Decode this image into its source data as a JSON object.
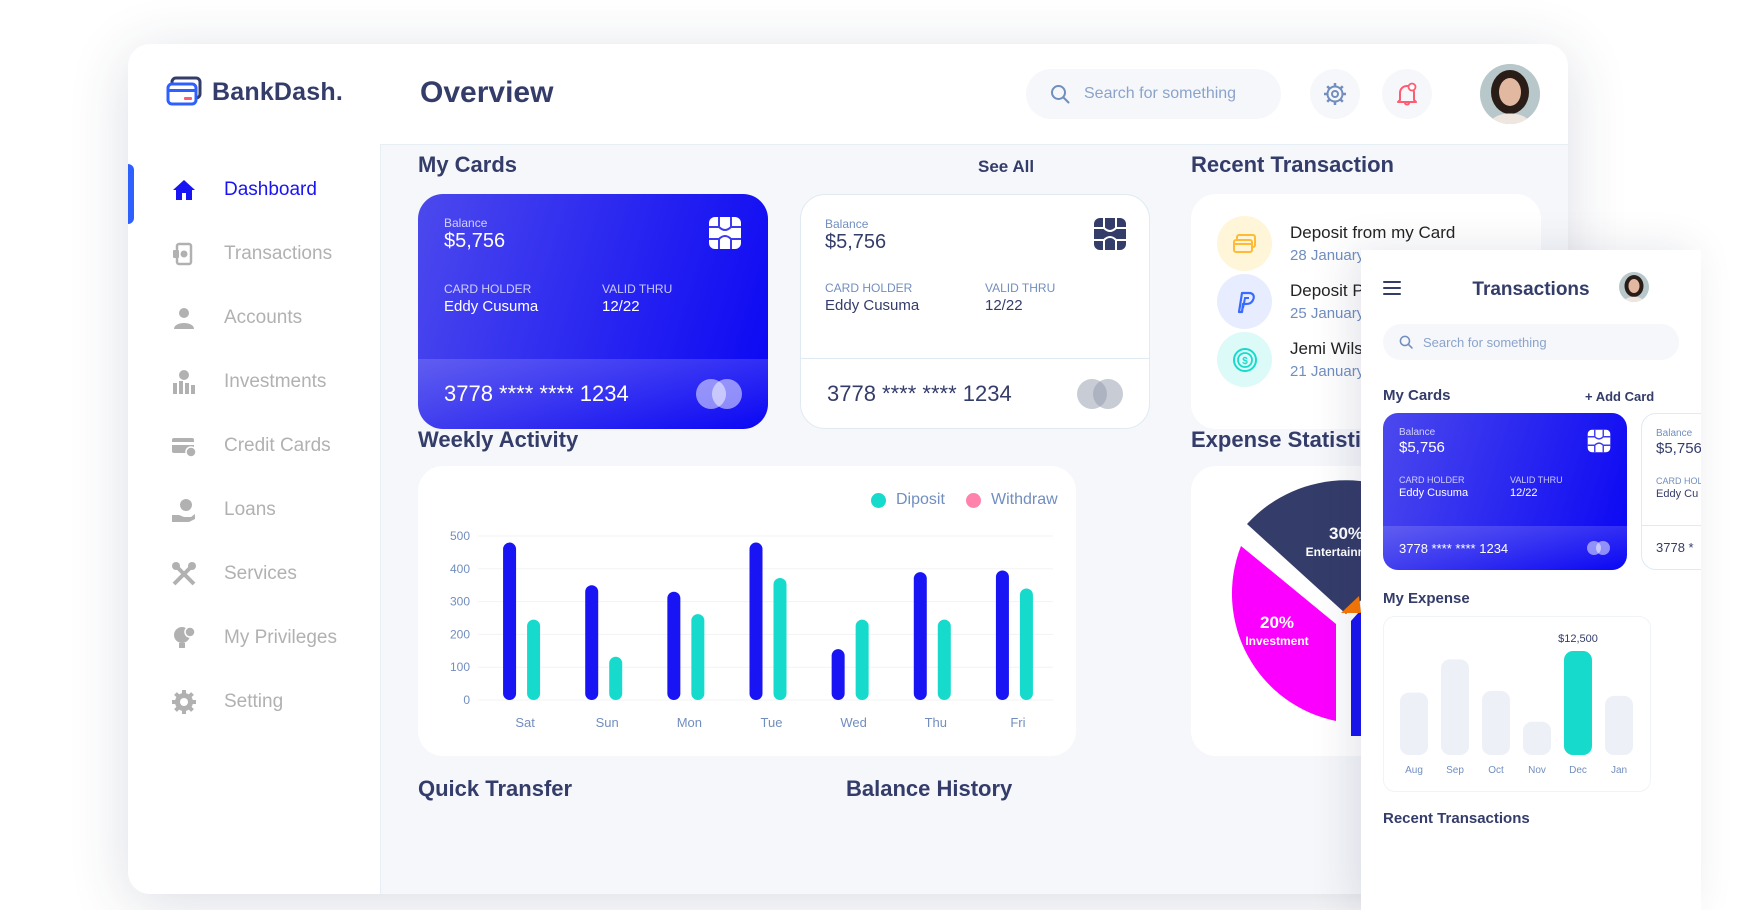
{
  "app": {
    "name": "BankDash."
  },
  "sidebar": {
    "items": [
      {
        "label": "Dashboard",
        "icon": "home-icon",
        "active": true
      },
      {
        "label": "Transactions",
        "icon": "transfer-icon",
        "active": false
      },
      {
        "label": "Accounts",
        "icon": "user-icon",
        "active": false
      },
      {
        "label": "Investments",
        "icon": "investment-icon",
        "active": false
      },
      {
        "label": "Credit Cards",
        "icon": "credit-card-icon",
        "active": false
      },
      {
        "label": "Loans",
        "icon": "loan-icon",
        "active": false
      },
      {
        "label": "Services",
        "icon": "services-icon",
        "active": false
      },
      {
        "label": "My Privileges",
        "icon": "privileges-icon",
        "active": false
      },
      {
        "label": "Setting",
        "icon": "gear-icon",
        "active": false
      }
    ]
  },
  "header": {
    "title": "Overview",
    "search_placeholder": "Search for something"
  },
  "my_cards": {
    "title": "My Cards",
    "see_all": "See All",
    "cards": [
      {
        "balance_label": "Balance",
        "balance": "$5,756",
        "holder_label": "CARD HOLDER",
        "holder": "Eddy Cusuma",
        "valid_label": "VALID THRU",
        "valid": "12/22",
        "number": "3778 **** **** 1234"
      },
      {
        "balance_label": "Balance",
        "balance": "$5,756",
        "holder_label": "CARD HOLDER",
        "holder": "Eddy Cusuma",
        "valid_label": "VALID THRU",
        "valid": "12/22",
        "number": "3778 **** **** 1234"
      }
    ]
  },
  "recent_transaction": {
    "title": "Recent Transaction",
    "items": [
      {
        "title": "Deposit from my Card",
        "date": "28 January",
        "icon": "card-icon",
        "color": "#fff5d9"
      },
      {
        "title": "Deposit Paypal",
        "date": "25 January",
        "icon": "paypal-icon",
        "color": "#e7edff"
      },
      {
        "title": "Jemi Wilson",
        "date": "21 January",
        "icon": "dollar-icon",
        "color": "#dcfaf8"
      }
    ]
  },
  "weekly_activity": {
    "title": "Weekly Activity"
  },
  "expense_statistics": {
    "title": "Expense Statistics",
    "slices": [
      {
        "percent": "30%",
        "label": "Entertainment",
        "color": "#343c6a"
      },
      {
        "percent": "20%",
        "label": "Investment",
        "color": "#fc00ff"
      }
    ]
  },
  "bottom_sections": {
    "quick_transfer": "Quick Transfer",
    "balance_history": "Balance History"
  },
  "chart_data": {
    "type": "bar",
    "categories": [
      "Sat",
      "Sun",
      "Mon",
      "Tue",
      "Wed",
      "Thu",
      "Fri"
    ],
    "series": [
      {
        "name": "Diposit",
        "values": [
          480,
          350,
          330,
          480,
          155,
          390,
          395
        ],
        "color": "#1814f3"
      },
      {
        "name": "Withdraw",
        "values": [
          245,
          132,
          262,
          372,
          245,
          245,
          340
        ],
        "color": "#16dbcc"
      }
    ],
    "yticks": [
      "0",
      "100",
      "200",
      "300",
      "400",
      "500"
    ],
    "ylim": [
      0,
      500
    ],
    "legend": "top-right",
    "grid": true
  },
  "mobile": {
    "title": "Transactions",
    "search_placeholder": "Search for something",
    "my_cards": "My Cards",
    "add_card": "+ Add Card",
    "card": {
      "balance_label": "Balance",
      "balance": "$5,756",
      "holder_label": "CARD HOLDER",
      "holder": "Eddy Cusuma",
      "valid_label": "VALID THRU",
      "valid": "12/22",
      "number": "3778 **** **** 1234"
    },
    "card2": {
      "balance_label": "Balance",
      "balance": "$5,756",
      "holder_label": "CARD HOLDER",
      "holder": "Eddy Cu",
      "number": "3778 *"
    },
    "my_expense": "My Expense",
    "recent_transactions": "Recent Transactions",
    "expense_chart": {
      "categories": [
        "Aug",
        "Sep",
        "Oct",
        "Nov",
        "Dec",
        "Jan"
      ],
      "values": [
        7500,
        11500,
        7700,
        4000,
        12500,
        7100
      ],
      "highlight_index": 4,
      "highlight_label": "$12,500"
    }
  }
}
